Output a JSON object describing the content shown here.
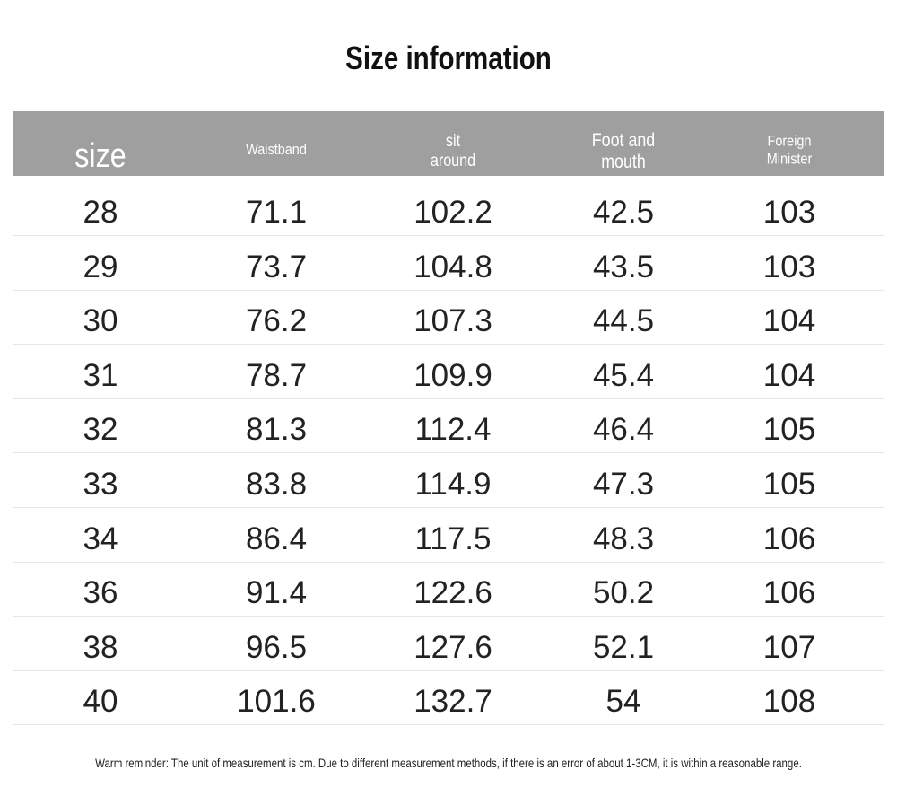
{
  "header": {
    "title": "Size information"
  },
  "table": {
    "columns": [
      "size",
      "Waistband",
      "sit around",
      "Foot and mouth",
      "Foreign Minister"
    ],
    "rows": [
      [
        "28",
        "71.1",
        "102.2",
        "42.5",
        "103"
      ],
      [
        "29",
        "73.7",
        "104.8",
        "43.5",
        "103"
      ],
      [
        "30",
        "76.2",
        "107.3",
        "44.5",
        "104"
      ],
      [
        "31",
        "78.7",
        "109.9",
        "45.4",
        "104"
      ],
      [
        "32",
        "81.3",
        "112.4",
        "46.4",
        "105"
      ],
      [
        "33",
        "83.8",
        "114.9",
        "47.3",
        "105"
      ],
      [
        "34",
        "86.4",
        "117.5",
        "48.3",
        "106"
      ],
      [
        "36",
        "91.4",
        "122.6",
        "50.2",
        "106"
      ],
      [
        "38",
        "96.5",
        "127.6",
        "52.1",
        "107"
      ],
      [
        "40",
        "101.6",
        "132.7",
        "54",
        "108"
      ]
    ]
  },
  "footer": {
    "note": "Warm reminder: The unit of measurement is cm. Due to different measurement methods, if there is an error of about 1-3CM, it is within a reasonable range."
  }
}
